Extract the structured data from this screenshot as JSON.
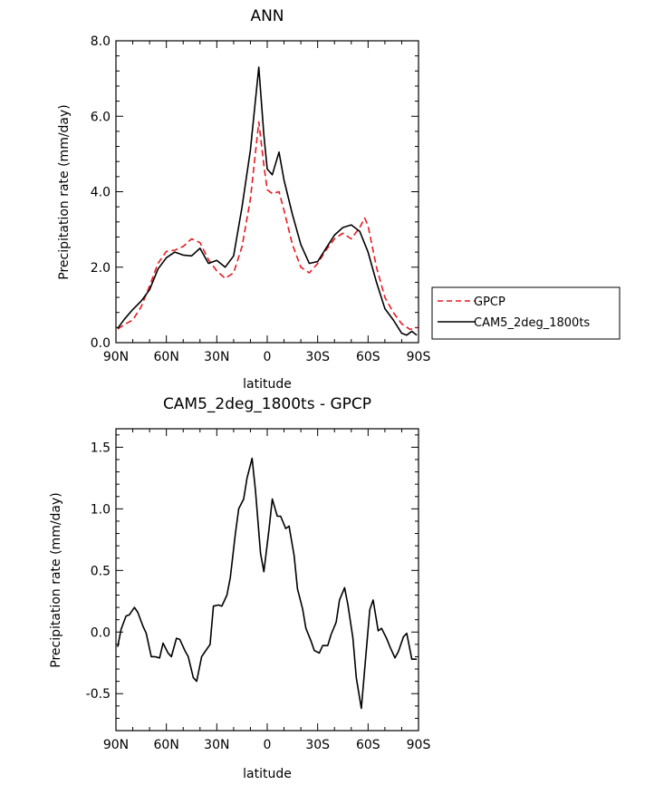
{
  "chart_data": [
    {
      "type": "line",
      "title": "ANN",
      "xlabel": "latitude",
      "ylabel": "Precipitation rate (mm/day)",
      "xlim": [
        90,
        -90
      ],
      "ylim": [
        0,
        8
      ],
      "x_ticks": [
        90,
        60,
        30,
        0,
        -30,
        -60,
        -90
      ],
      "x_tick_labels": [
        "90N",
        "60N",
        "30N",
        "0",
        "30S",
        "60S",
        "90S"
      ],
      "y_ticks": [
        0,
        2,
        4,
        6,
        8
      ],
      "y_tick_labels": [
        "0.0",
        "2.0",
        "4.0",
        "6.0",
        "8.0"
      ],
      "grid": false,
      "legend_position": "right",
      "series": [
        {
          "name": "GPCP",
          "color": "#e8191e",
          "style": "dashed",
          "x": [
            89,
            85,
            80,
            75,
            70,
            65,
            60,
            55,
            50,
            45,
            40,
            35,
            30,
            25,
            20,
            15,
            10,
            5,
            2,
            0,
            -3,
            -7,
            -10,
            -15,
            -20,
            -25,
            -30,
            -35,
            -40,
            -45,
            -50,
            -55,
            -58,
            -60,
            -65,
            -70,
            -75,
            -80,
            -85,
            -89
          ],
          "values": [
            0.36,
            0.48,
            0.6,
            0.95,
            1.5,
            2.1,
            2.42,
            2.45,
            2.55,
            2.75,
            2.65,
            2.2,
            1.9,
            1.7,
            1.85,
            2.55,
            3.8,
            5.85,
            4.7,
            4.05,
            3.95,
            4.0,
            3.5,
            2.6,
            2.0,
            1.85,
            2.1,
            2.45,
            2.75,
            2.9,
            2.75,
            3.05,
            3.3,
            3.1,
            2.0,
            1.2,
            0.8,
            0.5,
            0.35,
            0.4
          ]
        },
        {
          "name": "CAM5_2deg_1800ts",
          "color": "#000000",
          "style": "solid",
          "x": [
            89,
            85,
            80,
            75,
            70,
            65,
            60,
            55,
            50,
            45,
            40,
            35,
            30,
            25,
            20,
            15,
            10,
            5,
            2,
            0,
            -3,
            -7,
            -10,
            -15,
            -20,
            -25,
            -30,
            -35,
            -40,
            -45,
            -50,
            -55,
            -60,
            -65,
            -70,
            -75,
            -80,
            -83,
            -86,
            -89
          ],
          "values": [
            0.38,
            0.62,
            0.88,
            1.1,
            1.4,
            1.95,
            2.25,
            2.4,
            2.32,
            2.3,
            2.5,
            2.1,
            2.18,
            2.0,
            2.3,
            3.6,
            5.1,
            7.3,
            5.5,
            4.6,
            4.45,
            5.05,
            4.3,
            3.4,
            2.6,
            2.1,
            2.15,
            2.5,
            2.85,
            3.05,
            3.12,
            2.95,
            2.4,
            1.6,
            0.9,
            0.6,
            0.25,
            0.2,
            0.3,
            0.2
          ]
        }
      ]
    },
    {
      "type": "line",
      "title": "CAM5_2deg_1800ts - GPCP",
      "xlabel": "latitude",
      "ylabel": "Precipitation rate (mm/day)",
      "xlim": [
        90,
        -90
      ],
      "ylim": [
        -0.8,
        1.65
      ],
      "x_ticks": [
        90,
        60,
        30,
        0,
        -30,
        -60,
        -90
      ],
      "x_tick_labels": [
        "90N",
        "60N",
        "30N",
        "0",
        "30S",
        "60S",
        "90S"
      ],
      "y_ticks": [
        -0.5,
        0,
        0.5,
        1.0,
        1.5
      ],
      "y_tick_labels": [
        "-0.5",
        "0.0",
        "0.5",
        "1.0",
        "1.5"
      ],
      "grid": false,
      "series": [
        {
          "color": "#000000",
          "style": "solid",
          "x": [
            89,
            87,
            84,
            82,
            79,
            77,
            74,
            72,
            69,
            67,
            64,
            62,
            59,
            57,
            54,
            52,
            49,
            47,
            44,
            42,
            39,
            37,
            34,
            32,
            29,
            27,
            24,
            22,
            19,
            17,
            14,
            12,
            9,
            7,
            4,
            2,
            -1,
            -3,
            -6,
            -8,
            -11,
            -13,
            -16,
            -18,
            -21,
            -23,
            -26,
            -28,
            -31,
            -33,
            -36,
            -38,
            -41,
            -43,
            -46,
            -48,
            -51,
            -53,
            -56,
            -58,
            -61,
            -63,
            -66,
            -68,
            -71,
            -73,
            -76,
            -78,
            -81,
            -83,
            -86,
            -89
          ],
          "values": [
            -0.12,
            0.02,
            0.13,
            0.14,
            0.2,
            0.16,
            0.05,
            -0.01,
            -0.2,
            -0.2,
            -0.21,
            -0.09,
            -0.17,
            -0.2,
            -0.05,
            -0.06,
            -0.15,
            -0.2,
            -0.37,
            -0.4,
            -0.2,
            -0.16,
            -0.1,
            0.21,
            0.22,
            0.21,
            0.3,
            0.44,
            0.79,
            1.0,
            1.08,
            1.25,
            1.41,
            1.15,
            0.64,
            0.49,
            0.83,
            1.08,
            0.94,
            0.94,
            0.84,
            0.86,
            0.62,
            0.35,
            0.19,
            0.03,
            -0.07,
            -0.15,
            -0.17,
            -0.11,
            -0.11,
            -0.02,
            0.08,
            0.26,
            0.36,
            0.22,
            -0.05,
            -0.37,
            -0.62,
            -0.3,
            0.18,
            0.26,
            0.01,
            0.03,
            -0.05,
            -0.12,
            -0.21,
            -0.16,
            -0.04,
            -0.01,
            -0.22,
            -0.22
          ]
        }
      ]
    }
  ]
}
